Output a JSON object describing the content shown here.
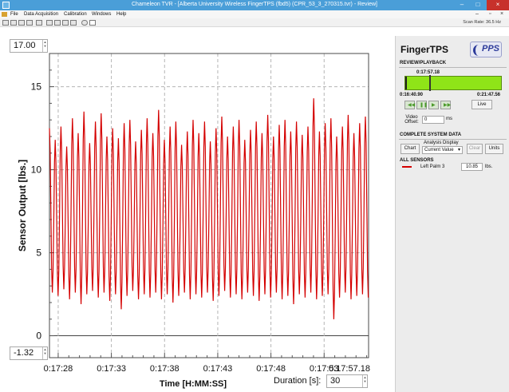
{
  "window": {
    "title": "Chameleon TVR - [Alberta University Wireless FingerTPS (fbd5) (CPR_53_3_270315.tvr) - Review]",
    "min_label": "–",
    "max_label": "□",
    "close_label": "×"
  },
  "menu": {
    "items": [
      "File",
      "Data Acquisition",
      "Calibration",
      "Windows",
      "Help"
    ],
    "mdi_min": "–",
    "mdi_restore": "▫",
    "mdi_close": "×"
  },
  "toolbar": {
    "scan_rate": "Scan Rate: 36.5 Hz"
  },
  "plot": {
    "y_top_value": "17.00",
    "y_bottom_value": "-1.32",
    "duration_label": "Duration [s]:",
    "duration_value": "30"
  },
  "chart_data": {
    "type": "line",
    "ylabel": "Sensor Output [lbs.]",
    "xlabel": "Time [H:MM:SS]",
    "ylim": [
      -1.32,
      17.0
    ],
    "y_ticks": [
      "0",
      "5",
      "10",
      "15"
    ],
    "x_ticks": [
      "0:17:28",
      "0:17:33",
      "0:17:38",
      "0:17:43",
      "0:17:48",
      "0:17:53"
    ],
    "x_end_label": "0:17:57.18",
    "x_range_seconds": [
      1047.18,
      1077.18
    ],
    "grid": true,
    "series": [
      {
        "name": "Left Palm 3",
        "color": "#d40000",
        "x_start": 1047.18,
        "period": 0.54,
        "peaks": [
          12.5,
          11.8,
          12.6,
          11.4,
          13.1,
          12.2,
          13.5,
          11.6,
          12.9,
          13.4,
          12.0,
          12.5,
          11.9,
          12.8,
          13.0,
          11.7,
          12.4,
          13.1,
          12.2,
          13.6,
          11.8,
          12.6,
          12.9,
          11.5,
          12.3,
          13.0,
          12.2,
          12.9,
          11.7,
          12.5,
          13.2,
          12.0,
          12.6,
          13.0,
          11.8,
          12.4,
          12.9,
          12.2,
          13.3,
          12.0,
          12.7,
          13.0,
          12.3,
          12.9,
          12.1,
          12.6,
          14.3,
          12.3,
          12.8,
          13.1,
          12.0,
          12.6,
          13.3,
          12.2,
          12.8,
          13.2,
          12.0,
          13.1,
          14.1
        ],
        "troughs": [
          2.6,
          2.4,
          2.8,
          2.2,
          2.6,
          1.9,
          2.5,
          2.7,
          2.3,
          2.6,
          2.1,
          2.5,
          1.6,
          2.4,
          2.7,
          2.2,
          2.5,
          2.3,
          2.6,
          2.2,
          2.5,
          2.0,
          2.4,
          2.6,
          2.2,
          2.5,
          2.3,
          2.6,
          2.1,
          2.4,
          2.7,
          2.3,
          2.5,
          2.2,
          2.6,
          2.4,
          2.1,
          2.5,
          2.3,
          2.6,
          2.2,
          2.4,
          1.9,
          2.5,
          2.3,
          2.6,
          2.2,
          2.4,
          2.5,
          1.0,
          2.3,
          2.6,
          2.2,
          2.4,
          2.5,
          2.3,
          2.6,
          2.4,
          2.5
        ]
      }
    ]
  },
  "panel": {
    "app_name": "FingerTPS",
    "logo_text": "PPS",
    "review_title": "REVIEW/PLAYBACK",
    "current_time": "0:17:57.18",
    "start_time": "0:16:40.90",
    "end_time": "0:21:47.56",
    "playback_position": 0.25,
    "ctrl_icons": [
      "rewind-icon",
      "pause-icon",
      "play-icon",
      "fast-forward-icon"
    ],
    "ctrl_glyphs": [
      "◀◀",
      "❚❚",
      "▶",
      "▶▶"
    ],
    "live_label": "Live",
    "video_offset_label": "Video Offset:",
    "video_offset_value": "0",
    "ms_label": "ms",
    "complete_title": "COMPLETE SYSTEM DATA",
    "analysis_display_label": "Analysis Display",
    "chart_label": "Chart",
    "analysis_value": "Current Value",
    "clear_label": "Clear",
    "units_label": "Units",
    "all_sensors_title": "ALL SENSORS",
    "sensor_name": "Left Palm 3",
    "sensor_value": "10.85",
    "sensor_unit": "lbs."
  }
}
